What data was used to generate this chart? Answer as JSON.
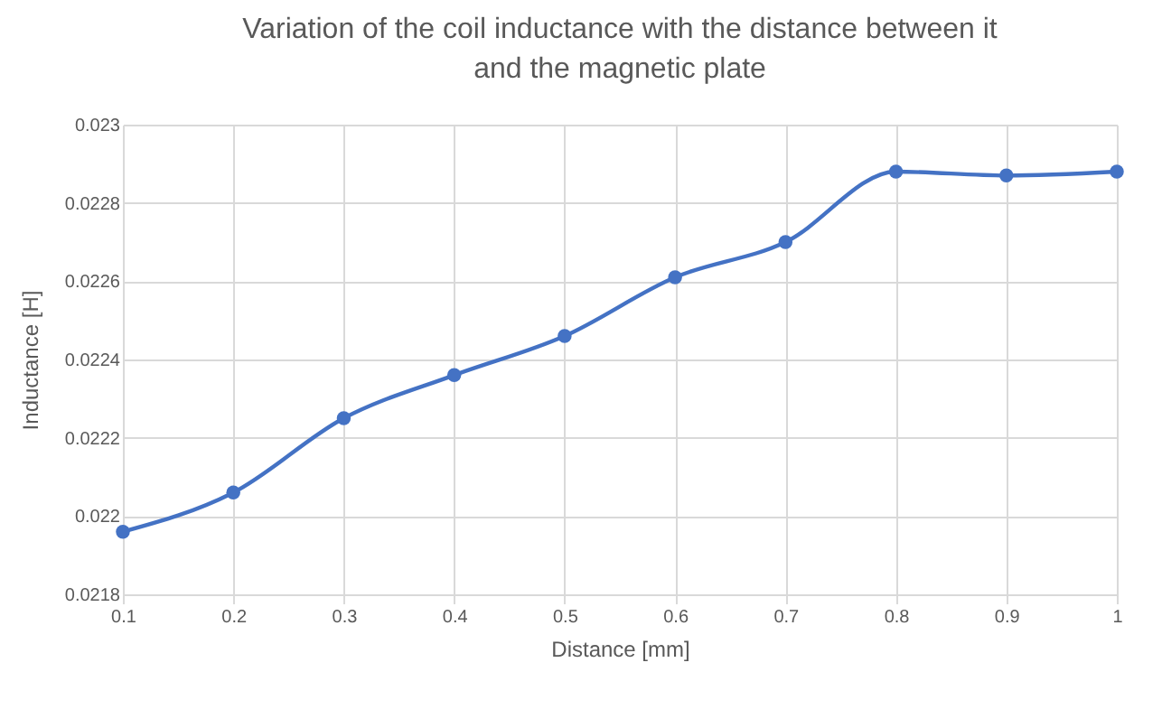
{
  "chart_data": {
    "type": "line",
    "title": "Variation of the coil inductance with the distance between it and the magnetic plate",
    "xlabel": "Distance [mm]",
    "ylabel": "Inductance [H]",
    "categories": [
      "0.1",
      "0.2",
      "0.3",
      "0.4",
      "0.5",
      "0.6",
      "0.7",
      "0.8",
      "0.9",
      "1"
    ],
    "series": [
      {
        "color": "#4472c4",
        "values": [
          0.02196,
          0.02206,
          0.02225,
          0.02236,
          0.02246,
          0.02261,
          0.0227,
          0.02288,
          0.02287,
          0.02288
        ]
      }
    ],
    "ylim": [
      0.0218,
      0.023
    ],
    "yticks": [
      0.0218,
      0.022,
      0.0222,
      0.0224,
      0.0226,
      0.0228,
      0.023
    ],
    "grid": true,
    "marker": "circle",
    "line_style": "solid"
  }
}
